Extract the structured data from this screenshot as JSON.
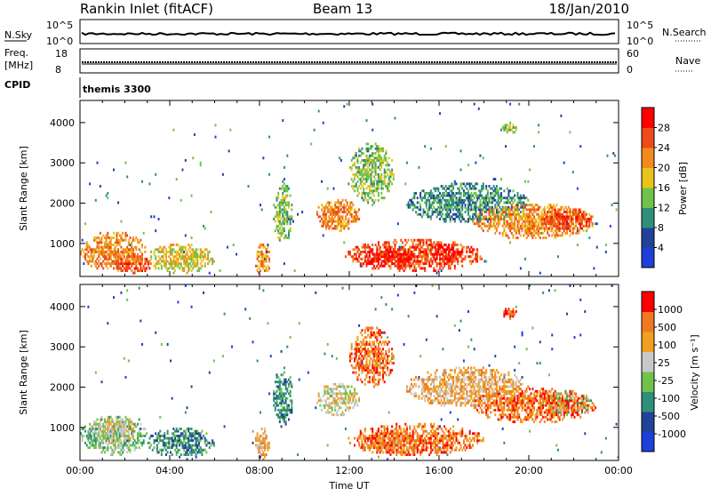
{
  "header": {
    "station": "Rankin Inlet (fitACF)",
    "beam": "Beam 13",
    "date": "18/Jan/2010"
  },
  "top_panels": {
    "nsky_label": "N.Sky",
    "nsky_ticks": [
      "10^5",
      "10^0"
    ],
    "nsearch_label": "N.Search",
    "nsearch_ticks": [
      "10^5",
      "10^0"
    ],
    "freq_label_1": "Freq.",
    "freq_label_2": "[MHz]",
    "freq_ticks": [
      "18",
      "8"
    ],
    "nave_label": "Nave",
    "nave_ticks": [
      "60",
      "0"
    ],
    "cpid_label": "CPID",
    "cpid_value": "themis 3300"
  },
  "chart_data": [
    {
      "type": "heatmap",
      "name": "power",
      "ylabel": "Slant Range [km]",
      "yticks": [
        1000,
        2000,
        3000,
        4000
      ],
      "ylim": [
        180,
        4550
      ],
      "colorbar_label": "Power [dB]",
      "colorbar_ticks": [
        "28",
        "24",
        "20",
        "16",
        "12",
        "8",
        "4"
      ],
      "colors": [
        "#1f3fd8",
        "#22429a",
        "#2e8f7a",
        "#6fc24a",
        "#e9c21c",
        "#f28a1e",
        "#ee4a1a",
        "#ff0000"
      ],
      "blobs": [
        {
          "t0": 0.0,
          "t1": 3.0,
          "r0": 300,
          "r1": 1300,
          "level": 5
        },
        {
          "t0": 1.5,
          "t1": 3.2,
          "r0": 250,
          "r1": 700,
          "level": 6
        },
        {
          "t0": 3.0,
          "t1": 6.0,
          "r0": 250,
          "r1": 1000,
          "level": 4
        },
        {
          "t0": 7.8,
          "t1": 8.5,
          "r0": 200,
          "r1": 1000,
          "level": 5
        },
        {
          "t0": 8.6,
          "t1": 9.5,
          "r0": 1000,
          "r1": 2500,
          "level": 3
        },
        {
          "t0": 10.5,
          "t1": 12.5,
          "r0": 1300,
          "r1": 2100,
          "level": 5
        },
        {
          "t0": 11.8,
          "t1": 18.0,
          "r0": 300,
          "r1": 1100,
          "level": 6
        },
        {
          "t0": 12.5,
          "t1": 15.0,
          "r0": 400,
          "r1": 900,
          "level": 7
        },
        {
          "t0": 15.5,
          "t1": 17.0,
          "r0": 500,
          "r1": 1000,
          "level": 7
        },
        {
          "t0": 12.0,
          "t1": 14.0,
          "r0": 2000,
          "r1": 3500,
          "level": 3
        },
        {
          "t0": 17.5,
          "t1": 23.0,
          "r0": 1100,
          "r1": 2000,
          "level": 5
        },
        {
          "t0": 20.5,
          "t1": 22.8,
          "r0": 1300,
          "r1": 1900,
          "level": 6
        },
        {
          "t0": 18.8,
          "t1": 19.5,
          "r0": 3700,
          "r1": 4000,
          "level": 3
        },
        {
          "t0": 14.5,
          "t1": 20.0,
          "r0": 1500,
          "r1": 2500,
          "level": 2
        }
      ]
    },
    {
      "type": "heatmap",
      "name": "velocity",
      "ylabel": "Slant Range [km]",
      "yticks": [
        1000,
        2000,
        3000,
        4000
      ],
      "ylim": [
        180,
        4550
      ],
      "xlabel": "Time UT",
      "xticks": [
        "00:00",
        "04:00",
        "08:00",
        "12:00",
        "16:00",
        "20:00",
        "00:00"
      ],
      "colorbar_label": "Velocity [m s⁻¹]",
      "colorbar_ticks": [
        "1000",
        "500",
        "100",
        "25",
        "-25",
        "-100",
        "-500",
        "-1000"
      ],
      "colors": [
        "#1f3fd8",
        "#22429a",
        "#2e8f7a",
        "#6fc24a",
        "#c8c8c8",
        "#f0a01e",
        "#f07a1e",
        "#ff0000"
      ],
      "blobs": [
        {
          "t0": 0.0,
          "t1": 3.0,
          "r0": 300,
          "r1": 1300,
          "level": 3
        },
        {
          "t0": 0.5,
          "t1": 2.5,
          "r0": 600,
          "r1": 1300,
          "level": 4
        },
        {
          "t0": 3.0,
          "t1": 6.0,
          "r0": 250,
          "r1": 1000,
          "level": 2
        },
        {
          "t0": 7.8,
          "t1": 8.5,
          "r0": 200,
          "r1": 1000,
          "level": 5
        },
        {
          "t0": 8.6,
          "t1": 9.5,
          "r0": 1000,
          "r1": 2500,
          "level": 2
        },
        {
          "t0": 10.5,
          "t1": 12.5,
          "r0": 1300,
          "r1": 2100,
          "level": 4
        },
        {
          "t0": 11.8,
          "t1": 18.0,
          "r0": 300,
          "r1": 1100,
          "level": 6
        },
        {
          "t0": 12.5,
          "t1": 15.0,
          "r0": 400,
          "r1": 900,
          "level": 5
        },
        {
          "t0": 12.0,
          "t1": 14.0,
          "r0": 2000,
          "r1": 3500,
          "level": 6
        },
        {
          "t0": 17.5,
          "t1": 23.0,
          "r0": 1100,
          "r1": 2000,
          "level": 6
        },
        {
          "t0": 20.5,
          "t1": 22.8,
          "r0": 1300,
          "r1": 1900,
          "level": 3
        },
        {
          "t0": 18.8,
          "t1": 19.5,
          "r0": 3700,
          "r1": 4000,
          "level": 7
        },
        {
          "t0": 14.5,
          "t1": 20.0,
          "r0": 1500,
          "r1": 2500,
          "level": 5
        }
      ]
    }
  ]
}
